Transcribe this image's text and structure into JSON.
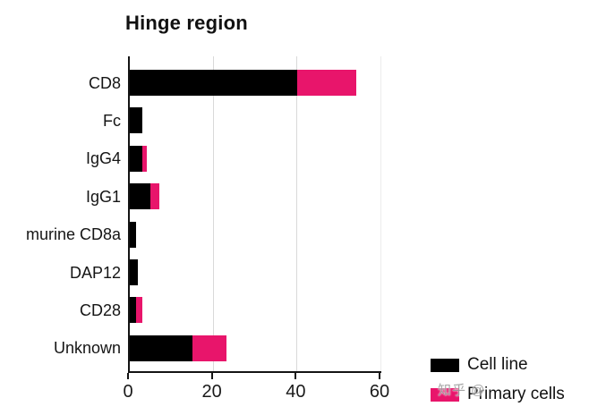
{
  "title": "Hinge region",
  "watermark": "知乎 @",
  "colors": {
    "bar_black": "#000000",
    "bar_pink": "#e8156b",
    "axis": "#141414",
    "grid": "#d9d9d9",
    "watermark_gray": "#9c9c9c",
    "background": "#ffffff"
  },
  "legend": {
    "items": [
      {
        "label": "Cell line",
        "color": "#000000"
      },
      {
        "label": "Primary cells",
        "color": "#e8156b"
      }
    ],
    "position": "bottom-right"
  },
  "chart_data": {
    "type": "bar",
    "orientation": "horizontal",
    "stacked": true,
    "title": "Hinge region",
    "categories": [
      "CD8",
      "Fc",
      "IgG4",
      "IgG1",
      "murine CD8a",
      "DAP12",
      "CD28",
      "Unknown"
    ],
    "series": [
      {
        "name": "Cell line",
        "color": "#000000",
        "values": [
          40,
          3,
          3,
          5,
          1.5,
          2,
          1.5,
          15
        ]
      },
      {
        "name": "Primary cells",
        "color": "#e8156b",
        "values": [
          14,
          0,
          1,
          2,
          0,
          0,
          1.5,
          8
        ]
      }
    ],
    "xlabel": "",
    "ylabel": "",
    "xlim": [
      0,
      60
    ],
    "xticks": [
      0,
      20,
      40,
      60
    ],
    "gridlines": [
      20,
      40
    ],
    "gridlines_faint": [
      60
    ],
    "grid": "vertical-only",
    "legend_position": "bottom-right"
  }
}
